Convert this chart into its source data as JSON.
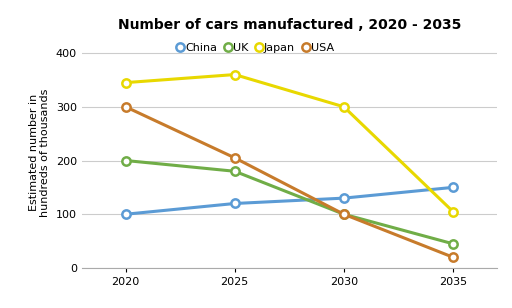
{
  "title": "Number of cars manufactured , 2020 - 2035",
  "ylabel": "Estimated number in\nhundreds of thousands",
  "years": [
    2020,
    2025,
    2030,
    2035
  ],
  "series": {
    "China": {
      "values": [
        100,
        120,
        130,
        150
      ],
      "color": "#5b9bd5",
      "marker": "o"
    },
    "UK": {
      "values": [
        200,
        180,
        100,
        45
      ],
      "color": "#70ad47",
      "marker": "o"
    },
    "Japan": {
      "values": [
        345,
        360,
        300,
        105
      ],
      "color": "#e8d800",
      "marker": "o"
    },
    "USA": {
      "values": [
        300,
        205,
        100,
        20
      ],
      "color": "#c77b2b",
      "marker": "o"
    }
  },
  "ylim": [
    0,
    430
  ],
  "yticks": [
    0,
    100,
    200,
    300,
    400
  ],
  "background_color": "#ffffff",
  "grid_color": "#cccccc",
  "title_fontsize": 10,
  "axis_label_fontsize": 8,
  "tick_fontsize": 8,
  "legend_fontsize": 8,
  "line_width": 2.2,
  "marker_size": 6
}
